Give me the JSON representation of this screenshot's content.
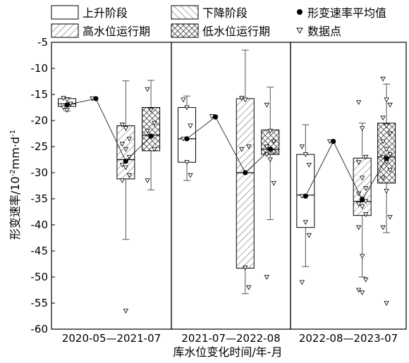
{
  "chart_data": {
    "type": "box",
    "xlabel": "库水位变化时间/年-月",
    "ylabel_main": "形变速率/10",
    "ylabel_exp": "-2",
    "ylabel_unit": "mm·d",
    "ylabel_unit_exp": "-1",
    "ylim": [
      -60,
      -5
    ],
    "yticks": [
      -5,
      -10,
      -15,
      -20,
      -25,
      -30,
      -35,
      -40,
      -45,
      -50,
      -55,
      -60
    ],
    "grid": false,
    "legend": {
      "items": [
        {
          "key": "rise",
          "label": "上升阶段",
          "pattern": "none"
        },
        {
          "key": "fall",
          "label": "下降阶段",
          "pattern": "diagonal"
        },
        {
          "key": "mean",
          "label": "形变速率平均值",
          "pattern": "dot"
        },
        {
          "key": "high",
          "label": "高水位运行期",
          "pattern": "backslash"
        },
        {
          "key": "low",
          "label": "低水位运行期",
          "pattern": "crosshatch"
        },
        {
          "key": "points",
          "label": "数据点",
          "pattern": "triangle"
        }
      ]
    },
    "periods": [
      {
        "label": "2020-05—2021-07",
        "boxes": [
          {
            "stage": "rise",
            "q1": -17.3,
            "median": -16.8,
            "q3": -15.8,
            "min": -18.2,
            "max": -15.6,
            "mean": -17.0,
            "points": [
              -15.7,
              -16.0,
              -16.8,
              -17.5,
              -18.0
            ]
          },
          {
            "stage": "fall",
            "q1": null,
            "median": null,
            "q3": null,
            "min": null,
            "max": null,
            "mean": -15.8,
            "points": [
              -15.8
            ]
          },
          {
            "stage": "high",
            "q1": -31.2,
            "median": -27.5,
            "q3": -21.0,
            "min": -42.8,
            "max": -12.4,
            "mean": -27.8,
            "points": [
              -20.8,
              -21.5,
              -23.5,
              -24.5,
              -25.5,
              -27.0,
              -28.5,
              -29.0,
              -30.5,
              -31.5,
              -56.5
            ]
          },
          {
            "stage": "low",
            "q1": -25.8,
            "median": -22.8,
            "q3": -17.5,
            "min": -33.3,
            "max": -12.3,
            "mean": -23.0,
            "points": [
              -14.0,
              -18.0,
              -20.5,
              -22.0,
              -23.0,
              -25.5,
              -31.5
            ]
          }
        ]
      },
      {
        "label": "2021-07—2022-08",
        "boxes": [
          {
            "stage": "rise",
            "q1": -28.0,
            "median": -23.5,
            "q3": -17.5,
            "min": -31.5,
            "max": -15.3,
            "mean": -23.5,
            "points": [
              -16.0,
              -17.5,
              -21.0,
              -23.5,
              -28.0,
              -30.5
            ]
          },
          {
            "stage": "fall",
            "q1": null,
            "median": null,
            "q3": null,
            "min": null,
            "max": null,
            "mean": -19.3,
            "points": [
              -19.2,
              -19.4
            ]
          },
          {
            "stage": "high",
            "q1": -48.3,
            "median": -30.0,
            "q3": -15.8,
            "min": -53.2,
            "max": -6.5,
            "mean": -30.0,
            "points": [
              -15.7,
              -16.0,
              -25.0,
              -25.5,
              -48.2,
              -52.0
            ]
          },
          {
            "stage": "low",
            "q1": -26.5,
            "median": -25.5,
            "q3": -21.8,
            "min": -39.0,
            "max": -13.6,
            "mean": -25.5,
            "points": [
              -17.0,
              -22.0,
              -24.0,
              -25.0,
              -25.5,
              -26.0,
              -26.5,
              -27.5,
              -32.0,
              -50.0
            ]
          }
        ]
      },
      {
        "label": "2022-08—2023-07",
        "boxes": [
          {
            "stage": "rise",
            "q1": -40.5,
            "median": -34.3,
            "q3": -26.5,
            "min": -48.0,
            "max": -20.8,
            "mean": -34.5,
            "points": [
              -25.0,
              -26.5,
              -28.5,
              -34.5,
              -39.5,
              -42.0,
              -51.0
            ]
          },
          {
            "stage": "fall",
            "q1": null,
            "median": null,
            "q3": null,
            "min": null,
            "max": null,
            "mean": -24.0,
            "points": [
              -24.0
            ]
          },
          {
            "stage": "high",
            "q1": -38.2,
            "median": -35.5,
            "q3": -27.2,
            "min": -50.0,
            "max": -20.5,
            "mean": -35.2,
            "points": [
              -16.5,
              -21.5,
              -27.0,
              -28.0,
              -31.0,
              -33.0,
              -34.0,
              -35.0,
              -35.5,
              -36.0,
              -36.5,
              -38.0,
              -40.5,
              -46.0,
              -50.5,
              -52.5,
              -53.0
            ]
          },
          {
            "stage": "low",
            "q1": -32.0,
            "median": -27.0,
            "q3": -20.5,
            "min": -41.5,
            "max": -13.0,
            "mean": -27.3,
            "points": [
              -12.0,
              -16.0,
              -17.0,
              -19.5,
              -21.0,
              -22.5,
              -24.0,
              -25.5,
              -26.5,
              -27.0,
              -28.0,
              -29.5,
              -31.0,
              -33.5,
              -38.5,
              -40.5,
              -55.0
            ]
          }
        ]
      }
    ]
  }
}
